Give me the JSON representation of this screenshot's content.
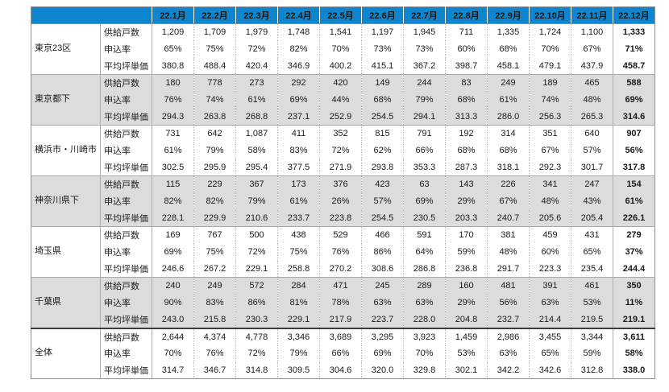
{
  "colors": {
    "header_bg": "#0e86cf",
    "header_text": "#ffffff",
    "band_gray": "#dcdcdc",
    "band_white": "#ffffff",
    "text": "#1a1a1a",
    "total_divider": "#3c3c3c"
  },
  "chart_data": {
    "type": "table",
    "title": "",
    "corner_label": "",
    "months": [
      "22.1月",
      "22.2月",
      "22.3月",
      "22.4月",
      "22.5月",
      "22.6月",
      "22.7月",
      "22.8月",
      "22.9月",
      "22.10月",
      "22.11月",
      "22.12月"
    ],
    "metric_labels": [
      "供給戸数",
      "申込率",
      "平均坪単価"
    ],
    "groups": [
      {
        "region": "東京23区",
        "band": "white",
        "rows": {
          "供給戸数": [
            "1,209",
            "1,709",
            "1,979",
            "1,748",
            "1,541",
            "1,197",
            "1,945",
            "711",
            "1,335",
            "1,724",
            "1,100",
            "1,333"
          ],
          "申込率": [
            "65%",
            "75%",
            "72%",
            "82%",
            "70%",
            "73%",
            "73%",
            "60%",
            "68%",
            "70%",
            "67%",
            "71%"
          ],
          "平均坪単価": [
            "380.8",
            "488.4",
            "420.4",
            "346.9",
            "400.2",
            "415.1",
            "367.2",
            "398.7",
            "458.1",
            "479.1",
            "437.9",
            "458.7"
          ]
        }
      },
      {
        "region": "東京都下",
        "band": "gray",
        "rows": {
          "供給戸数": [
            "180",
            "778",
            "273",
            "292",
            "420",
            "149",
            "244",
            "83",
            "249",
            "189",
            "465",
            "588"
          ],
          "申込率": [
            "76%",
            "74%",
            "61%",
            "69%",
            "44%",
            "68%",
            "79%",
            "68%",
            "61%",
            "74%",
            "48%",
            "69%"
          ],
          "平均坪単価": [
            "294.3",
            "263.8",
            "268.8",
            "237.1",
            "252.9",
            "254.5",
            "294.1",
            "313.3",
            "286.0",
            "256.3",
            "265.3",
            "314.6"
          ]
        }
      },
      {
        "region": "横浜市・川崎市",
        "band": "white",
        "rows": {
          "供給戸数": [
            "731",
            "642",
            "1,087",
            "411",
            "352",
            "815",
            "791",
            "192",
            "314",
            "351",
            "640",
            "907"
          ],
          "申込率": [
            "61%",
            "79%",
            "58%",
            "83%",
            "72%",
            "62%",
            "66%",
            "68%",
            "68%",
            "67%",
            "57%",
            "56%"
          ],
          "平均坪単価": [
            "302.5",
            "295.9",
            "295.4",
            "377.5",
            "271.9",
            "293.8",
            "353.3",
            "287.3",
            "318.1",
            "292.3",
            "301.7",
            "317.8"
          ]
        }
      },
      {
        "region": "神奈川県下",
        "band": "gray",
        "rows": {
          "供給戸数": [
            "115",
            "229",
            "367",
            "173",
            "376",
            "423",
            "63",
            "143",
            "226",
            "341",
            "247",
            "154"
          ],
          "申込率": [
            "82%",
            "82%",
            "79%",
            "61%",
            "26%",
            "57%",
            "69%",
            "29%",
            "67%",
            "48%",
            "43%",
            "61%"
          ],
          "平均坪単価": [
            "228.1",
            "229.9",
            "210.6",
            "233.7",
            "223.8",
            "254.5",
            "230.5",
            "203.3",
            "240.7",
            "205.6",
            "205.4",
            "226.1"
          ]
        }
      },
      {
        "region": "埼玉県",
        "band": "white",
        "rows": {
          "供給戸数": [
            "169",
            "767",
            "500",
            "438",
            "529",
            "466",
            "591",
            "170",
            "381",
            "459",
            "431",
            "279"
          ],
          "申込率": [
            "69%",
            "75%",
            "72%",
            "75%",
            "76%",
            "86%",
            "64%",
            "59%",
            "48%",
            "60%",
            "65%",
            "37%"
          ],
          "平均坪単価": [
            "246.6",
            "267.2",
            "229.1",
            "258.8",
            "270.2",
            "308.6",
            "286.8",
            "236.8",
            "291.7",
            "223.3",
            "235.4",
            "244.4"
          ]
        }
      },
      {
        "region": "千葉県",
        "band": "gray",
        "rows": {
          "供給戸数": [
            "240",
            "249",
            "572",
            "284",
            "471",
            "245",
            "289",
            "160",
            "481",
            "391",
            "461",
            "350"
          ],
          "申込率": [
            "90%",
            "83%",
            "86%",
            "81%",
            "78%",
            "63%",
            "63%",
            "29%",
            "56%",
            "63%",
            "53%",
            "11%"
          ],
          "平均坪単価": [
            "243.0",
            "215.8",
            "230.3",
            "229.1",
            "217.9",
            "223.7",
            "228.0",
            "204.8",
            "232.7",
            "214.4",
            "219.5",
            "219.1"
          ]
        }
      },
      {
        "region": "全体",
        "band": "white",
        "is_total": true,
        "rows": {
          "供給戸数": [
            "2,644",
            "4,374",
            "4,778",
            "3,346",
            "3,689",
            "3,295",
            "3,923",
            "1,459",
            "2,986",
            "3,455",
            "3,344",
            "3,611"
          ],
          "申込率": [
            "70%",
            "76%",
            "72%",
            "79%",
            "66%",
            "69%",
            "70%",
            "53%",
            "63%",
            "65%",
            "59%",
            "58%"
          ],
          "平均坪単価": [
            "314.7",
            "346.7",
            "314.8",
            "309.5",
            "304.6",
            "320.0",
            "329.8",
            "302.1",
            "342.2",
            "342.6",
            "312.8",
            "338.0"
          ]
        }
      }
    ]
  }
}
